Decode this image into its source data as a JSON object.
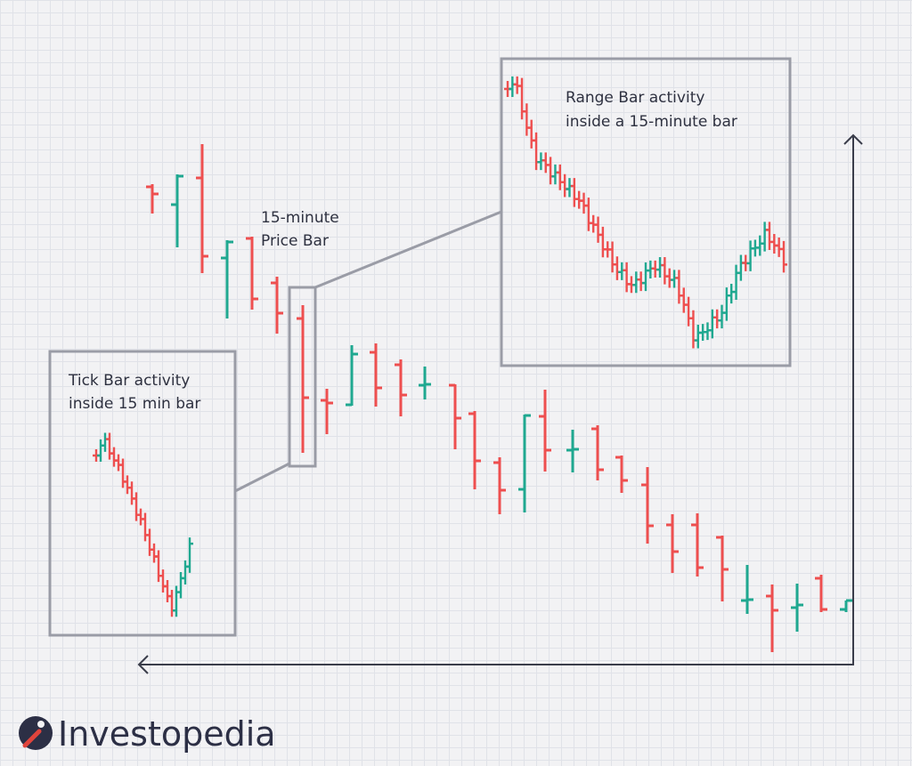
{
  "annotations": {
    "price_bar": [
      "15-minute",
      "Price Bar"
    ],
    "range_bar": [
      "Range Bar activity",
      "inside a 15-minute bar"
    ],
    "tick_bar": [
      "Tick Bar activity",
      "inside 15 min bar"
    ]
  },
  "logo": {
    "text": "Investopedia"
  }
}
